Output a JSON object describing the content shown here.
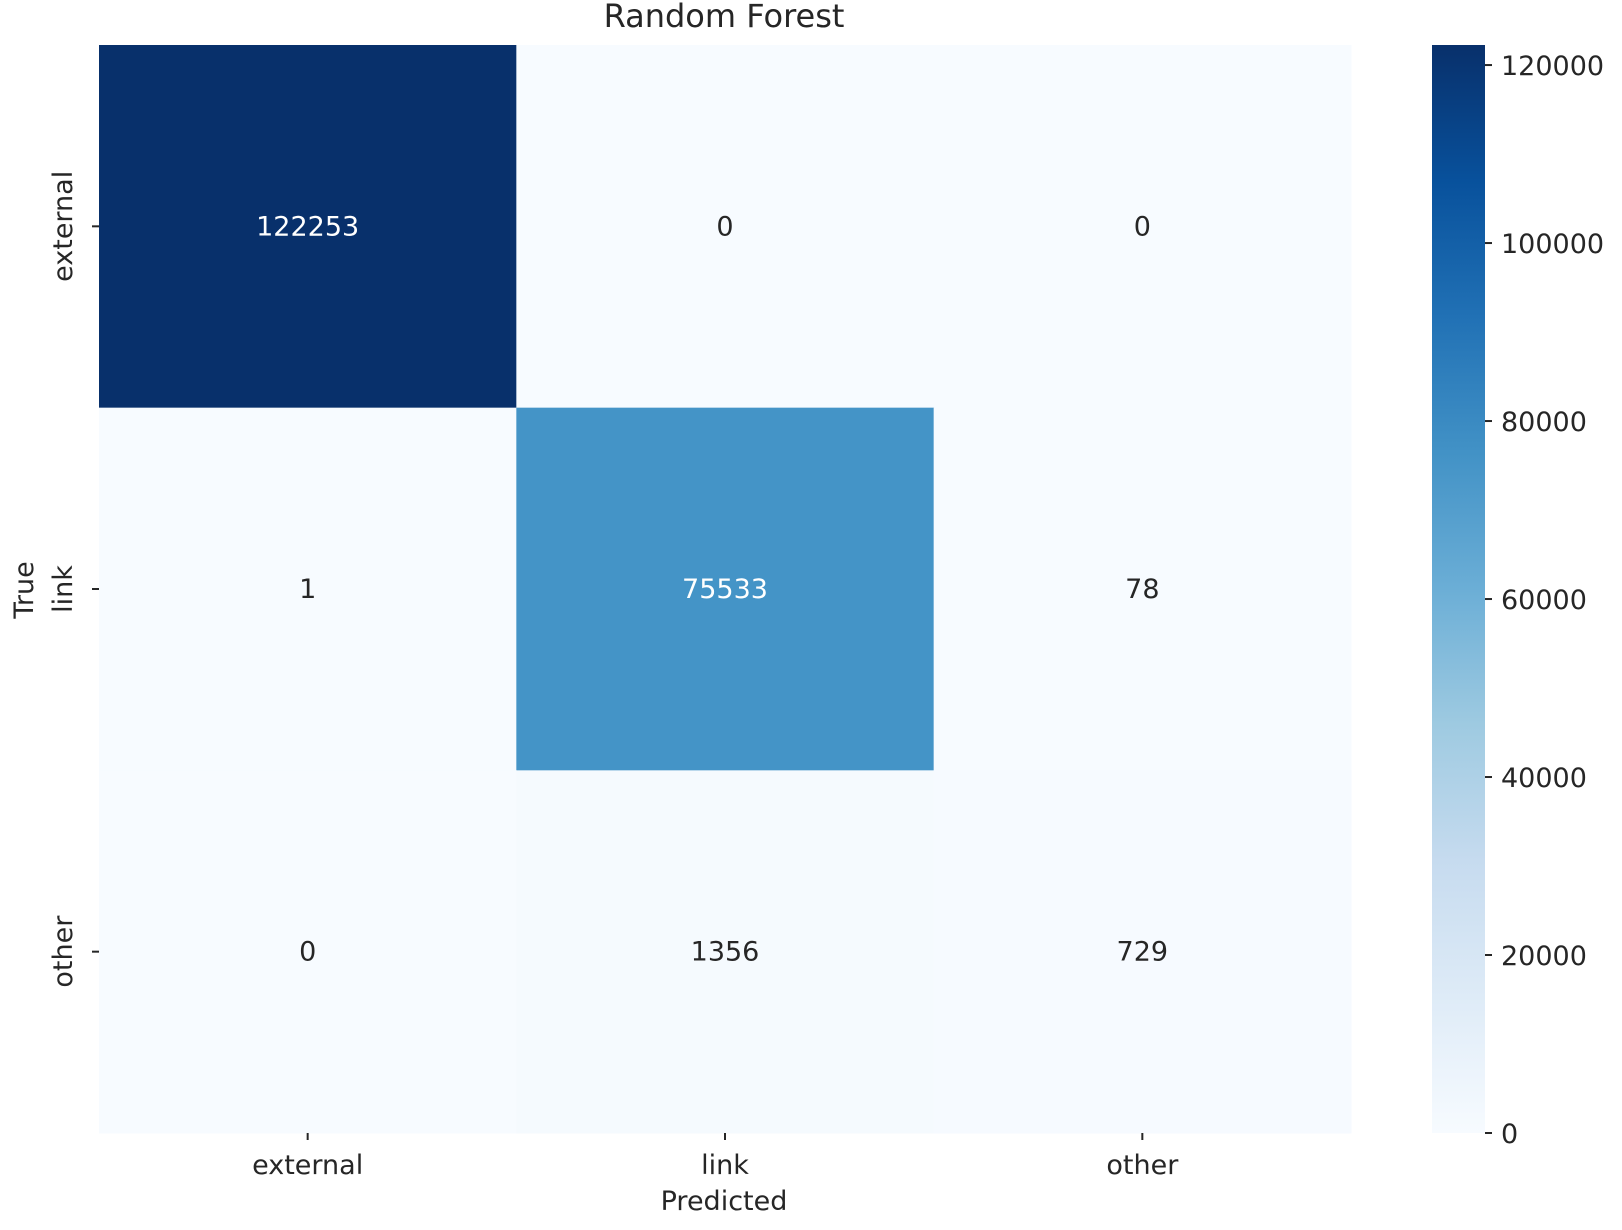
{
  "chart_data": {
    "type": "heatmap",
    "title": "Random Forest",
    "xlabel": "Predicted",
    "ylabel": "True",
    "x_categories": [
      "external",
      "link",
      "other"
    ],
    "y_categories": [
      "external",
      "link",
      "other"
    ],
    "values": [
      [
        122253,
        0,
        0
      ],
      [
        1,
        75533,
        78
      ],
      [
        0,
        1356,
        729
      ]
    ],
    "colorbar": {
      "min": 0,
      "max": 122253,
      "ticks": [
        0,
        20000,
        40000,
        60000,
        80000,
        100000,
        120000
      ],
      "colormap": "Blues"
    },
    "colors": {
      "low": "#f7fbff",
      "high": "#08306b",
      "text_dark": "#262626",
      "text_light": "#ffffff"
    }
  }
}
